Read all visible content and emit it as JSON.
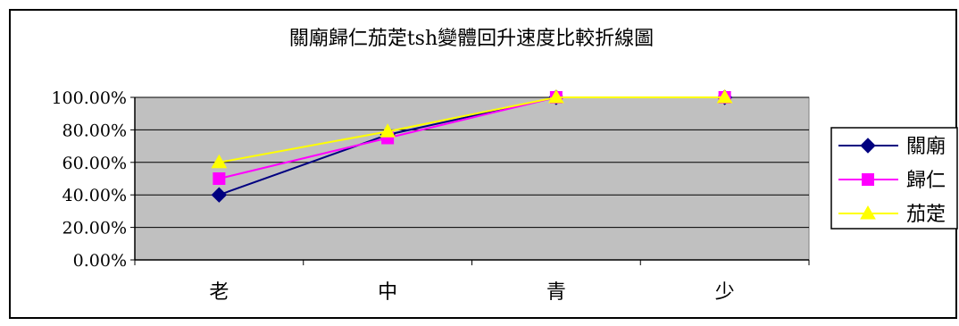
{
  "chart_data": {
    "type": "line",
    "title": "關廟歸仁茄萣tsh變體回升速度比較折線圖",
    "categories": [
      "老",
      "中",
      "青",
      "少"
    ],
    "ylim": [
      0,
      1
    ],
    "yticks": [
      "0.00%",
      "20.00%",
      "40.00%",
      "60.00%",
      "80.00%",
      "100.00%"
    ],
    "grid": true,
    "legend_position": "right",
    "plot_background": "#c0c0c0",
    "series": [
      {
        "name": "關廟",
        "values": [
          0.4,
          0.77,
          1.0,
          1.0
        ],
        "color": "#000080",
        "marker": "diamond"
      },
      {
        "name": "歸仁",
        "values": [
          0.5,
          0.75,
          1.0,
          1.0
        ],
        "color": "#ff00ff",
        "marker": "square"
      },
      {
        "name": "茄萣",
        "values": [
          0.6,
          0.79,
          1.0,
          1.0
        ],
        "color": "#ffff00",
        "marker": "triangle"
      }
    ]
  }
}
